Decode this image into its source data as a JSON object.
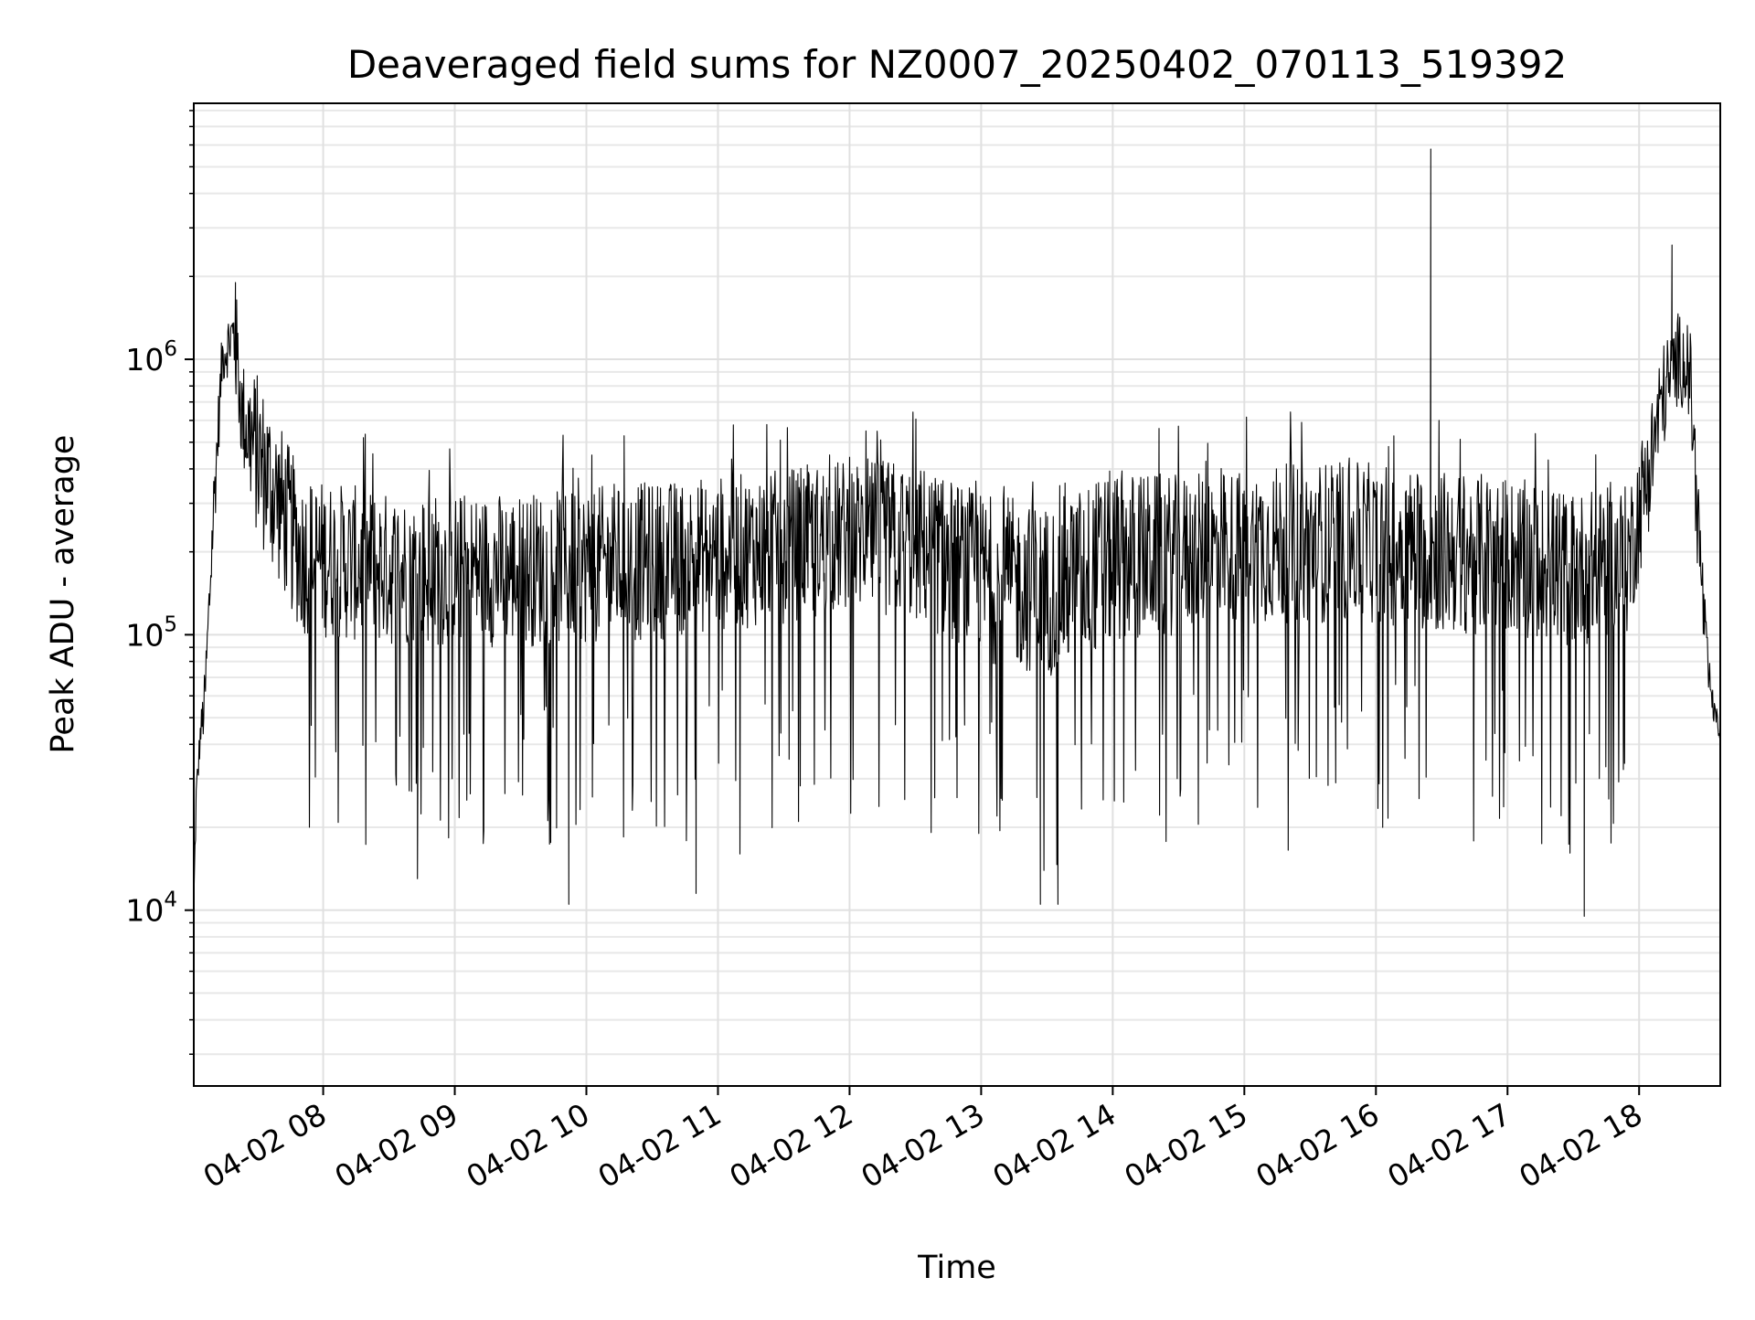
{
  "chart_data": {
    "type": "line",
    "title": "Deaveraged field sums for NZ0007_20250402_070113_519392",
    "xlabel": "Time",
    "ylabel": "Peak ADU - average",
    "yscale": "log",
    "xlim": [
      "04-02 07:01",
      "04-02 18:37"
    ],
    "ylim": [
      2300,
      8500000
    ],
    "grid": true,
    "x_ticks": [
      {
        "value": "04-02 08:00",
        "label": "04-02 08"
      },
      {
        "value": "04-02 09:00",
        "label": "04-02 09"
      },
      {
        "value": "04-02 10:00",
        "label": "04-02 10"
      },
      {
        "value": "04-02 11:00",
        "label": "04-02 11"
      },
      {
        "value": "04-02 12:00",
        "label": "04-02 12"
      },
      {
        "value": "04-02 13:00",
        "label": "04-02 13"
      },
      {
        "value": "04-02 14:00",
        "label": "04-02 14"
      },
      {
        "value": "04-02 15:00",
        "label": "04-02 15"
      },
      {
        "value": "04-02 16:00",
        "label": "04-02 16"
      },
      {
        "value": "04-02 17:00",
        "label": "04-02 17"
      },
      {
        "value": "04-02 18:00",
        "label": "04-02 18"
      }
    ],
    "y_ticks": [
      {
        "value": 10000,
        "base": "10",
        "exp": "4"
      },
      {
        "value": 100000,
        "base": "10",
        "exp": "5"
      },
      {
        "value": 1000000,
        "base": "10",
        "exp": "6"
      }
    ],
    "series": [
      {
        "color": "#000000",
        "envelope": [
          {
            "x": "04-02 07:01",
            "low": 8000,
            "high": 12000
          },
          {
            "x": "04-02 07:02",
            "low": 20000,
            "high": 30000
          },
          {
            "x": "04-02 07:04",
            "low": 38000,
            "high": 50000
          },
          {
            "x": "04-02 07:06",
            "low": 42000,
            "high": 75000
          },
          {
            "x": "04-02 07:10",
            "low": 200000,
            "high": 400000
          },
          {
            "x": "04-02 07:14",
            "low": 800000,
            "high": 1300000
          },
          {
            "x": "04-02 07:18",
            "low": 900000,
            "high": 1600000
          },
          {
            "x": "04-02 07:20",
            "low": 700000,
            "high": 1900000
          },
          {
            "x": "04-02 07:23",
            "low": 400000,
            "high": 1000000
          },
          {
            "x": "04-02 07:30",
            "low": 220000,
            "high": 900000
          },
          {
            "x": "04-02 07:40",
            "low": 150000,
            "high": 600000
          },
          {
            "x": "04-02 07:50",
            "low": 100000,
            "high": 380000
          },
          {
            "x": "04-02 08:30",
            "low": 90000,
            "high": 330000
          },
          {
            "x": "04-02 09:30",
            "low": 90000,
            "high": 330000
          },
          {
            "x": "04-02 10:30",
            "low": 95000,
            "high": 360000
          },
          {
            "x": "04-02 11:30",
            "low": 110000,
            "high": 400000
          },
          {
            "x": "04-02 12:00",
            "low": 120000,
            "high": 440000
          },
          {
            "x": "04-02 12:30",
            "low": 110000,
            "high": 430000
          },
          {
            "x": "04-02 13:00",
            "low": 80000,
            "high": 330000
          },
          {
            "x": "04-02 13:30",
            "low": 70000,
            "high": 300000
          },
          {
            "x": "04-02 14:00",
            "low": 90000,
            "high": 400000
          },
          {
            "x": "04-02 14:30",
            "low": 100000,
            "high": 380000
          },
          {
            "x": "04-02 15:00",
            "low": 110000,
            "high": 400000
          },
          {
            "x": "04-02 15:30",
            "low": 110000,
            "high": 430000
          },
          {
            "x": "04-02 16:00",
            "low": 110000,
            "high": 420000
          },
          {
            "x": "04-02 16:30",
            "low": 100000,
            "high": 400000
          },
          {
            "x": "04-02 17:00",
            "low": 100000,
            "high": 380000
          },
          {
            "x": "04-02 17:30",
            "low": 90000,
            "high": 330000
          },
          {
            "x": "04-02 17:55",
            "low": 100000,
            "high": 350000
          },
          {
            "x": "04-02 18:05",
            "low": 250000,
            "high": 700000
          },
          {
            "x": "04-02 18:10",
            "low": 450000,
            "high": 1100000
          },
          {
            "x": "04-02 18:18",
            "low": 700000,
            "high": 1500000
          },
          {
            "x": "04-02 18:23",
            "low": 600000,
            "high": 1400000
          },
          {
            "x": "04-02 18:27",
            "low": 150000,
            "high": 400000
          },
          {
            "x": "04-02 18:31",
            "low": 60000,
            "high": 100000
          },
          {
            "x": "04-02 18:34",
            "low": 48000,
            "high": 58000
          },
          {
            "x": "04-02 18:37",
            "low": 40000,
            "high": 50000
          }
        ],
        "notable_points": [
          {
            "x": "04-02 07:20",
            "y": 1900000
          },
          {
            "x": "04-02 08:43",
            "y": 13000
          },
          {
            "x": "04-02 09:52",
            "y": 10500
          },
          {
            "x": "04-02 10:50",
            "y": 11500
          },
          {
            "x": "04-02 11:10",
            "y": 16000
          },
          {
            "x": "04-02 13:27",
            "y": 10500
          },
          {
            "x": "04-02 13:35",
            "y": 10500
          },
          {
            "x": "04-02 15:20",
            "y": 16500
          },
          {
            "x": "04-02 16:25",
            "y": 5800000
          },
          {
            "x": "04-02 17:35",
            "y": 9500
          },
          {
            "x": "04-02 18:15",
            "y": 2600000
          }
        ]
      }
    ]
  }
}
